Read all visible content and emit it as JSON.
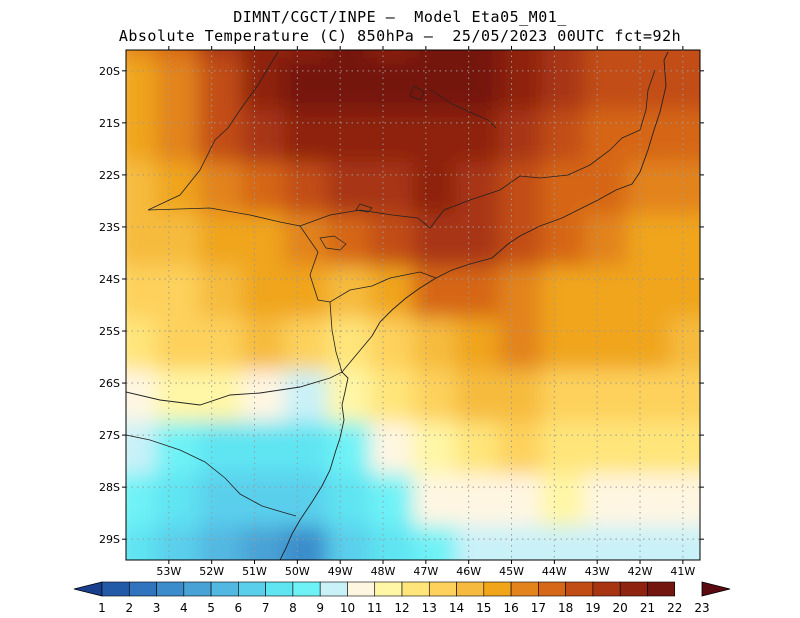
{
  "title": {
    "line1": "DIMNT/CGCT/INPE –  Model Eta05_M01_",
    "line2": "Absolute Temperature (C) 850hPa –  25/05/2023 00UTC fct=92h"
  },
  "axes": {
    "lat_labels": [
      "20S",
      "21S",
      "22S",
      "23S",
      "24S",
      "25S",
      "26S",
      "27S",
      "28S",
      "29S"
    ],
    "lon_labels": [
      "53W",
      "52W",
      "51W",
      "50W",
      "49W",
      "48W",
      "47W",
      "46W",
      "45W",
      "44W",
      "43W",
      "42W",
      "41W"
    ]
  },
  "colorbar": {
    "labels": [
      "1",
      "2",
      "3",
      "4",
      "5",
      "6",
      "7",
      "8",
      "9",
      "10",
      "11",
      "12",
      "13",
      "14",
      "15",
      "16",
      "17",
      "18",
      "19",
      "20",
      "21",
      "22",
      "23"
    ],
    "colors": [
      "#1a3f8f",
      "#235aa8",
      "#2f74bc",
      "#3b8ccb",
      "#48a2d6",
      "#52b8e2",
      "#5acfec",
      "#5fe4f2",
      "#6ef2f6",
      "#c9f1f8",
      "#fff6e2",
      "#fff6a6",
      "#ffe57a",
      "#fdd15c",
      "#f6bb3e",
      "#f0a51b",
      "#e2831c",
      "#d66618",
      "#c24d14",
      "#a83512",
      "#8e2410",
      "#741610",
      "#5a0a10"
    ]
  },
  "field": {
    "grid_lon": [
      -53.5,
      -52.5,
      -51.5,
      -50.5,
      -49.5,
      -48.5,
      -47.5,
      -46.5,
      -45.5,
      -44.5,
      -43.5,
      -42.5,
      -41.5,
      -40.5
    ],
    "grid_lat": [
      -19.5,
      -20.5,
      -21.5,
      -22.5,
      -23.5,
      -24.5,
      -25.5,
      -26.5,
      -27.5,
      -28.5,
      -29.5
    ],
    "temperature_c": [
      [
        17,
        18,
        20,
        21,
        21,
        22,
        21,
        22,
        22,
        21,
        20,
        19,
        19,
        19
      ],
      [
        16,
        17,
        19,
        21,
        22,
        22,
        22,
        22,
        22,
        21,
        20,
        19,
        19,
        19
      ],
      [
        16,
        17,
        19,
        20,
        21,
        21,
        21,
        21,
        21,
        20,
        19,
        18,
        18,
        18
      ],
      [
        15,
        16,
        17,
        18,
        19,
        20,
        20,
        21,
        20,
        19,
        18,
        18,
        17,
        17
      ],
      [
        15,
        15,
        16,
        16,
        17,
        18,
        19,
        20,
        20,
        19,
        18,
        17,
        16,
        16
      ],
      [
        14,
        14,
        15,
        16,
        16,
        15,
        16,
        18,
        18,
        17,
        16,
        16,
        16,
        16
      ],
      [
        13,
        14,
        14,
        15,
        14,
        13,
        14,
        15,
        16,
        17,
        16,
        16,
        16,
        15
      ],
      [
        11,
        12,
        12,
        11,
        10,
        12,
        13,
        14,
        15,
        15,
        14,
        14,
        14,
        14
      ],
      [
        10,
        9,
        8,
        8,
        8,
        9,
        11,
        12,
        13,
        14,
        13,
        13,
        13,
        13
      ],
      [
        9,
        8,
        7,
        7,
        7,
        8,
        9,
        11,
        11,
        11,
        12,
        11,
        11,
        11
      ],
      [
        8,
        7,
        6,
        5,
        4,
        7,
        8,
        9,
        10,
        10,
        10,
        10,
        10,
        10
      ]
    ]
  }
}
